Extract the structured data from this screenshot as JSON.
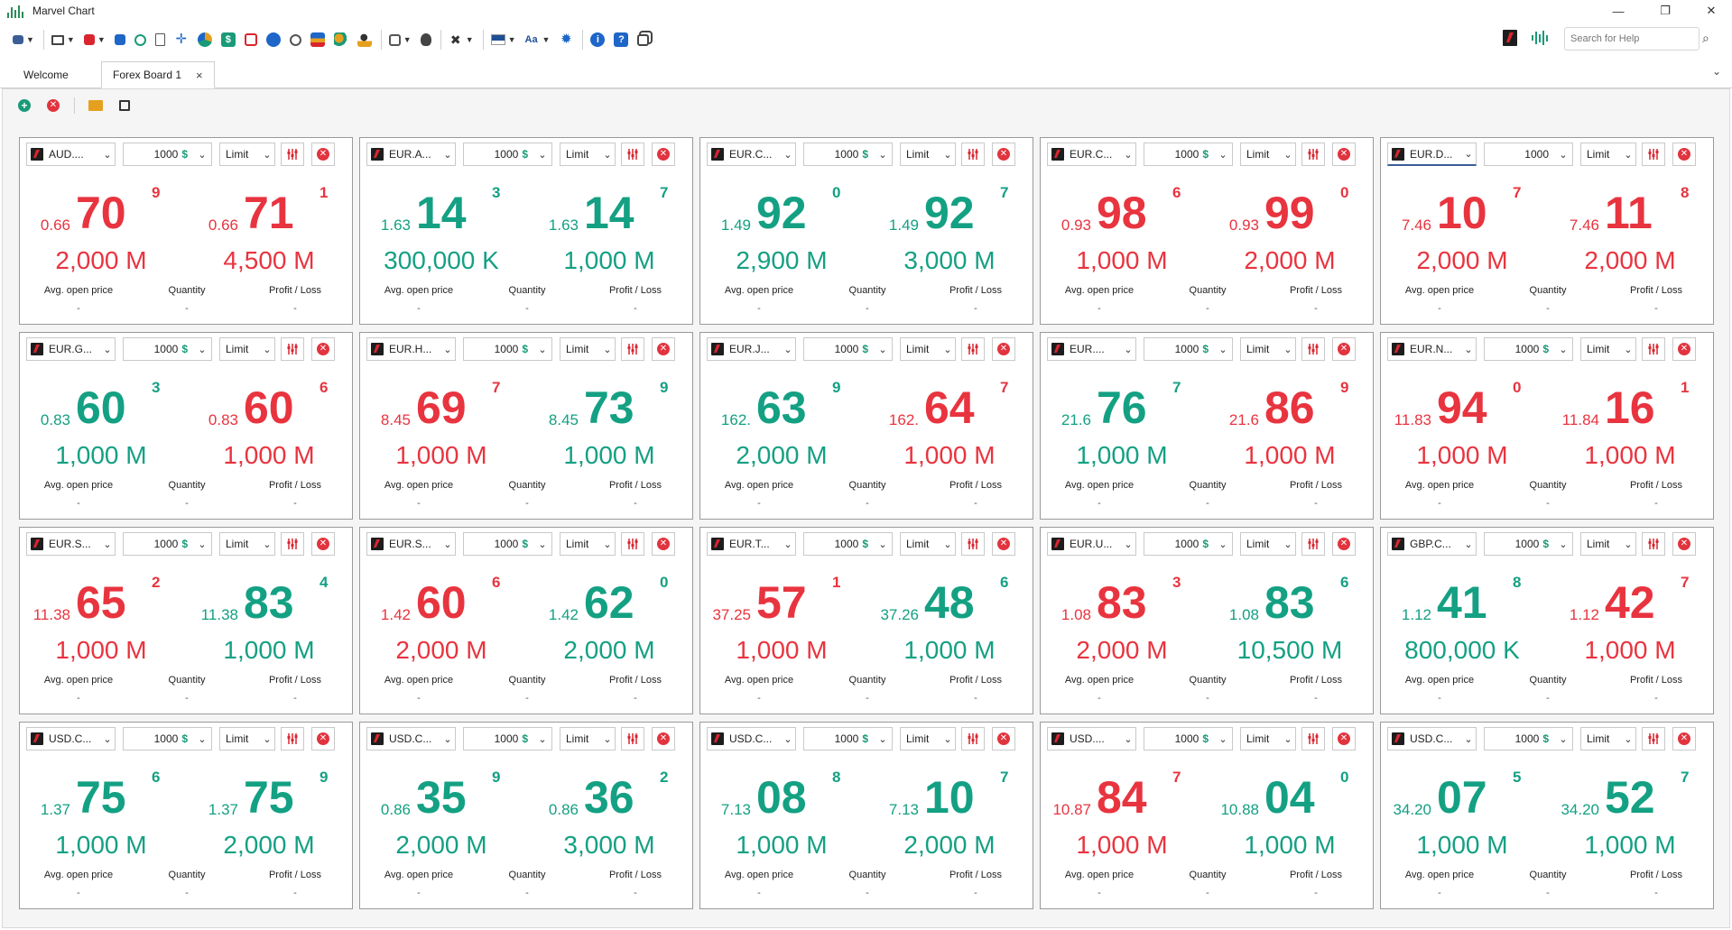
{
  "app": {
    "title": "Marvel Chart"
  },
  "window": {
    "minimize": "—",
    "restore": "❐",
    "close": "✕"
  },
  "search": {
    "placeholder": "Search for Help",
    "icon": "search-icon"
  },
  "tabs": [
    {
      "label": "Welcome"
    },
    {
      "label": "Forex Board 1",
      "close": "×"
    }
  ],
  "colors": {
    "up": "#14a083",
    "down": "#e8343f",
    "accent": "#3b5e96"
  },
  "labels": {
    "avg": "Avg. open price",
    "qty": "Quantity",
    "pl": "Profit / Loss",
    "dash": "-",
    "limit": "Limit"
  },
  "cards": [
    {
      "symbol": "AUD....",
      "qty": "1000",
      "bid": {
        "small": "0.66",
        "big": "70",
        "sup": "9",
        "amount": "2,000 M",
        "color": "red"
      },
      "ask": {
        "small": "0.66",
        "big": "71",
        "sup": "1",
        "amount": "4,500 M",
        "color": "red"
      }
    },
    {
      "symbol": "EUR.A...",
      "qty": "1000",
      "bid": {
        "small": "1.63",
        "big": "14",
        "sup": "3",
        "amount": "300,000 K",
        "color": "green"
      },
      "ask": {
        "small": "1.63",
        "big": "14",
        "sup": "7",
        "amount": "1,000 M",
        "color": "green"
      }
    },
    {
      "symbol": "EUR.C...",
      "qty": "1000",
      "bid": {
        "small": "1.49",
        "big": "92",
        "sup": "0",
        "amount": "2,900 M",
        "color": "green"
      },
      "ask": {
        "small": "1.49",
        "big": "92",
        "sup": "7",
        "amount": "3,000 M",
        "color": "green"
      }
    },
    {
      "symbol": "EUR.C...",
      "qty": "1000",
      "bid": {
        "small": "0.93",
        "big": "98",
        "sup": "6",
        "amount": "1,000 M",
        "color": "red"
      },
      "ask": {
        "small": "0.93",
        "big": "99",
        "sup": "0",
        "amount": "2,000 M",
        "color": "red"
      }
    },
    {
      "symbol": "EUR.D...",
      "qty": "1000",
      "focused": true,
      "bid": {
        "small": "7.46",
        "big": "10",
        "sup": "7",
        "amount": "2,000 M",
        "color": "red"
      },
      "ask": {
        "small": "7.46",
        "big": "11",
        "sup": "8",
        "amount": "2,000 M",
        "color": "red"
      }
    },
    {
      "symbol": "EUR.G...",
      "qty": "1000",
      "bid": {
        "small": "0.83",
        "big": "60",
        "sup": "3",
        "amount": "1,000 M",
        "color": "green"
      },
      "ask": {
        "small": "0.83",
        "big": "60",
        "sup": "6",
        "amount": "1,000 M",
        "color": "red"
      }
    },
    {
      "symbol": "EUR.H...",
      "qty": "1000",
      "bid": {
        "small": "8.45",
        "big": "69",
        "sup": "7",
        "amount": "1,000 M",
        "color": "red"
      },
      "ask": {
        "small": "8.45",
        "big": "73",
        "sup": "9",
        "amount": "1,000 M",
        "color": "green"
      }
    },
    {
      "symbol": "EUR.J...",
      "qty": "1000",
      "bid": {
        "small": "162.",
        "big": "63",
        "sup": "9",
        "amount": "2,000 M",
        "color": "green"
      },
      "ask": {
        "small": "162.",
        "big": "64",
        "sup": "7",
        "amount": "1,000 M",
        "color": "red"
      }
    },
    {
      "symbol": "EUR....",
      "qty": "1000",
      "bid": {
        "small": "21.6",
        "big": "76",
        "sup": "7",
        "amount": "1,000 M",
        "color": "green"
      },
      "ask": {
        "small": "21.6",
        "big": "86",
        "sup": "9",
        "amount": "1,000 M",
        "color": "red"
      }
    },
    {
      "symbol": "EUR.N...",
      "qty": "1000",
      "bid": {
        "small": "11.83",
        "big": "94",
        "sup": "0",
        "amount": "1,000 M",
        "color": "red"
      },
      "ask": {
        "small": "11.84",
        "big": "16",
        "sup": "1",
        "amount": "1,000 M",
        "color": "red"
      }
    },
    {
      "symbol": "EUR.S...",
      "qty": "1000",
      "bid": {
        "small": "11.38",
        "big": "65",
        "sup": "2",
        "amount": "1,000 M",
        "color": "red"
      },
      "ask": {
        "small": "11.38",
        "big": "83",
        "sup": "4",
        "amount": "1,000 M",
        "color": "green"
      }
    },
    {
      "symbol": "EUR.S...",
      "qty": "1000",
      "bid": {
        "small": "1.42",
        "big": "60",
        "sup": "6",
        "amount": "2,000 M",
        "color": "red"
      },
      "ask": {
        "small": "1.42",
        "big": "62",
        "sup": "0",
        "amount": "2,000 M",
        "color": "green"
      }
    },
    {
      "symbol": "EUR.T...",
      "qty": "1000",
      "bid": {
        "small": "37.25",
        "big": "57",
        "sup": "1",
        "amount": "1,000 M",
        "color": "red"
      },
      "ask": {
        "small": "37.26",
        "big": "48",
        "sup": "6",
        "amount": "1,000 M",
        "color": "green"
      }
    },
    {
      "symbol": "EUR.U...",
      "qty": "1000",
      "bid": {
        "small": "1.08",
        "big": "83",
        "sup": "3",
        "amount": "2,000 M",
        "color": "red"
      },
      "ask": {
        "small": "1.08",
        "big": "83",
        "sup": "6",
        "amount": "10,500 M",
        "color": "green"
      }
    },
    {
      "symbol": "GBP.C...",
      "qty": "1000",
      "bid": {
        "small": "1.12",
        "big": "41",
        "sup": "8",
        "amount": "800,000 K",
        "color": "green"
      },
      "ask": {
        "small": "1.12",
        "big": "42",
        "sup": "7",
        "amount": "1,000 M",
        "color": "red"
      }
    },
    {
      "symbol": "USD.C...",
      "qty": "1000",
      "bid": {
        "small": "1.37",
        "big": "75",
        "sup": "6",
        "amount": "1,000 M",
        "color": "green"
      },
      "ask": {
        "small": "1.37",
        "big": "75",
        "sup": "9",
        "amount": "2,000 M",
        "color": "green"
      }
    },
    {
      "symbol": "USD.C...",
      "qty": "1000",
      "bid": {
        "small": "0.86",
        "big": "35",
        "sup": "9",
        "amount": "2,000 M",
        "color": "green"
      },
      "ask": {
        "small": "0.86",
        "big": "36",
        "sup": "2",
        "amount": "3,000 M",
        "color": "green"
      }
    },
    {
      "symbol": "USD.C...",
      "qty": "1000",
      "bid": {
        "small": "7.13",
        "big": "08",
        "sup": "8",
        "amount": "1,000 M",
        "color": "green"
      },
      "ask": {
        "small": "7.13",
        "big": "10",
        "sup": "7",
        "amount": "2,000 M",
        "color": "green"
      }
    },
    {
      "symbol": "USD....",
      "qty": "1000",
      "bid": {
        "small": "10.87",
        "big": "84",
        "sup": "7",
        "amount": "1,000 M",
        "color": "red"
      },
      "ask": {
        "small": "10.88",
        "big": "04",
        "sup": "0",
        "amount": "1,000 M",
        "color": "green"
      }
    },
    {
      "symbol": "USD.C...",
      "qty": "1000",
      "bid": {
        "small": "34.20",
        "big": "07",
        "sup": "5",
        "amount": "1,000 M",
        "color": "green"
      },
      "ask": {
        "small": "34.20",
        "big": "52",
        "sup": "7",
        "amount": "1,000 M",
        "color": "green"
      }
    }
  ]
}
